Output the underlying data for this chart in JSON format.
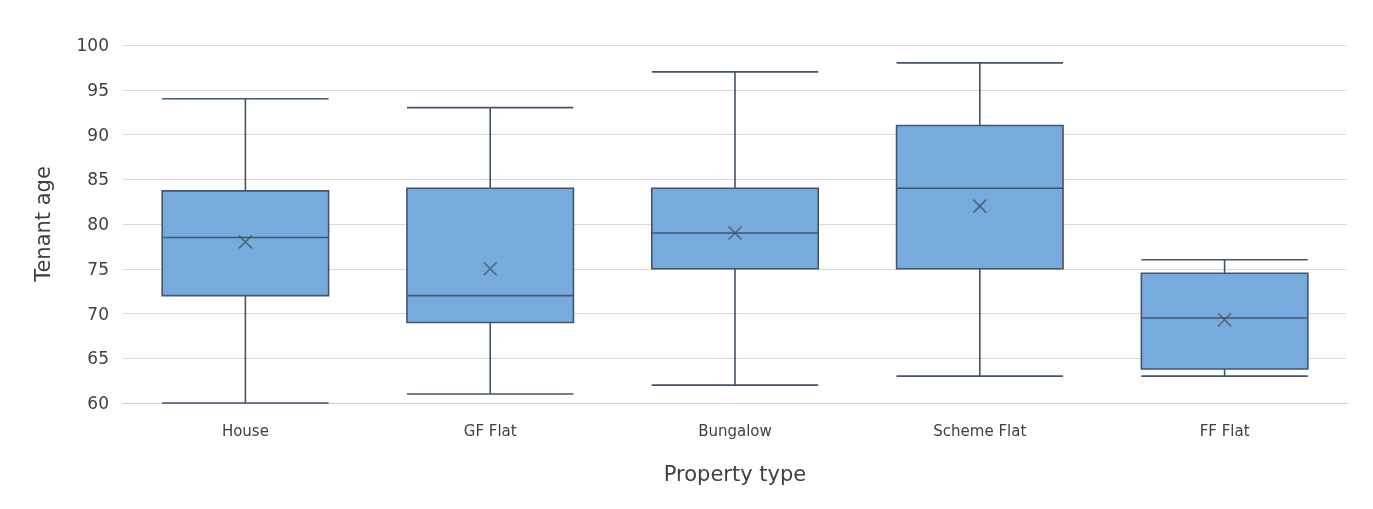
{
  "chart_data": {
    "type": "box",
    "xlabel": "Property type",
    "ylabel": "Tenant age",
    "categories": [
      "House",
      "GF Flat",
      "Bungalow",
      "Scheme Flat",
      "FF Flat"
    ],
    "color": "#77abdd",
    "boxes": [
      {
        "low": 60,
        "q1": 72,
        "median": 78.5,
        "q3": 83.7,
        "high": 94,
        "mean": 78
      },
      {
        "low": 61,
        "q1": 69,
        "median": 72,
        "q3": 84,
        "high": 93,
        "mean": 75
      },
      {
        "low": 62,
        "q1": 75,
        "median": 79,
        "q3": 84,
        "high": 97,
        "mean": 79
      },
      {
        "low": 63,
        "q1": 75,
        "median": 84,
        "q3": 91,
        "high": 98,
        "mean": 82
      },
      {
        "low": 63,
        "q1": 63.8,
        "median": 69.5,
        "q3": 74.5,
        "high": 76,
        "mean": 69.3
      }
    ],
    "ylim": [
      60,
      100
    ],
    "yticks": [
      60,
      65,
      70,
      75,
      80,
      85,
      90,
      95,
      100
    ],
    "grid": "y"
  }
}
